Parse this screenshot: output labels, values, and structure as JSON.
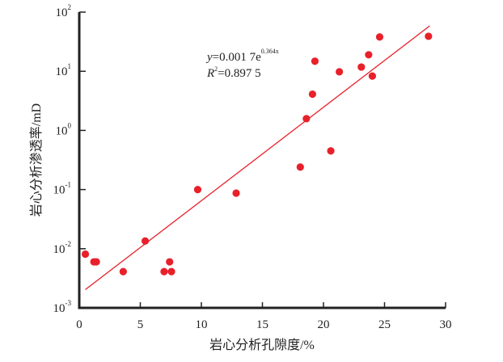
{
  "chart_data": {
    "type": "scatter",
    "title": "",
    "xlabel": "岩心分析孔隙度/%",
    "ylabel": "岩心分析渗透率/mD",
    "xlim": [
      0,
      30
    ],
    "ylim": [
      0.001,
      100
    ],
    "yscale": "log",
    "grid": false,
    "x_ticks": [
      "0",
      "5",
      "10",
      "15",
      "20",
      "25",
      "30"
    ],
    "x_tick_values": [
      0,
      5,
      10,
      15,
      20,
      25,
      30
    ],
    "y_ticks": [
      {
        "base": "10",
        "exp": "-3"
      },
      {
        "base": "10",
        "exp": "-2"
      },
      {
        "base": "10",
        "exp": "-1"
      },
      {
        "base": "10",
        "exp": "0"
      },
      {
        "base": "10",
        "exp": "1"
      },
      {
        "base": "10",
        "exp": "2"
      }
    ],
    "y_tick_values": [
      -3,
      -2,
      -1,
      0,
      1,
      2
    ],
    "points": [
      [
        0.5,
        0.0081
      ],
      [
        1.2,
        0.006
      ],
      [
        1.4,
        0.006
      ],
      [
        3.6,
        0.0041
      ],
      [
        5.4,
        0.0135
      ],
      [
        6.95,
        0.0041
      ],
      [
        7.4,
        0.006
      ],
      [
        7.55,
        0.0041
      ],
      [
        9.7,
        0.1
      ],
      [
        12.85,
        0.087
      ],
      [
        18.1,
        0.24
      ],
      [
        18.6,
        1.58
      ],
      [
        19.1,
        4.1
      ],
      [
        19.3,
        14.8
      ],
      [
        20.6,
        0.45
      ],
      [
        21.3,
        9.8
      ],
      [
        23.1,
        11.8
      ],
      [
        23.7,
        19
      ],
      [
        24.0,
        8.3
      ],
      [
        24.6,
        38
      ],
      [
        28.6,
        39
      ]
    ],
    "fit": {
      "a": 0.0017,
      "b": 0.364,
      "x_range": [
        0.5,
        28.7
      ]
    },
    "annotation": {
      "eq_y": "y",
      "eq_rest": "=0.001 7e",
      "eq_exp": "0.364x",
      "r2_r": "R",
      "r2_sup": "2",
      "r2_rest": "=0.897 5"
    },
    "colors": {
      "points": "#e8202a",
      "fit": "#e8202a",
      "axis": "#222222"
    }
  }
}
